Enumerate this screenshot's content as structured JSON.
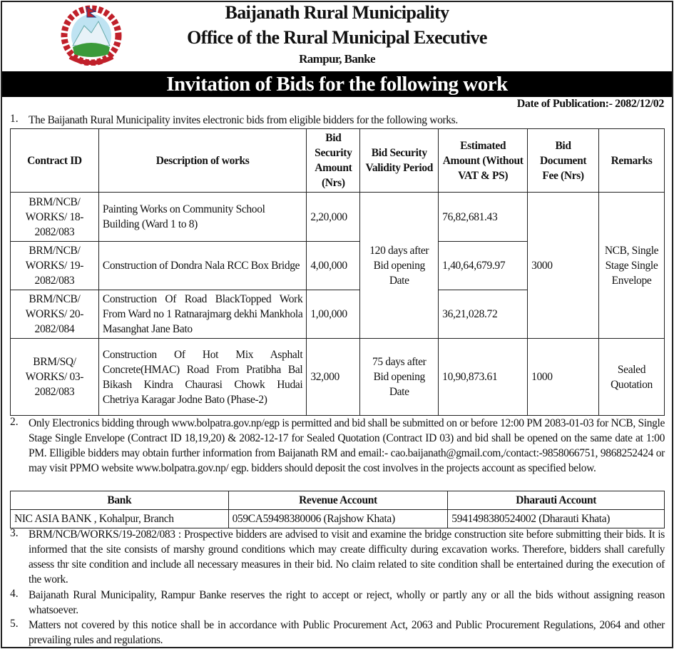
{
  "header": {
    "title": "Baijanath Rural Municipality",
    "subtitle": "Office of the Rural Municipal Executive",
    "address": "Rampur, Banke"
  },
  "banner": "Invitation of Bids for the following work",
  "date_of_publication": "Date of Publication:- 2082/12/02",
  "items": [
    {
      "num": "1.",
      "text": "The Baijanath Rural Municipality invites electronic bids from eligible bidders for the following works."
    },
    {
      "num": "2.",
      "text": "Only Electronics bidding through www.bolpatra.gov.np/egp is permitted and bid shall be submitted on or before 12:00 PM 2083-01-03 for NCB, Single Stage Single Envelope (Contract ID 18,19,20) & 2082-12-17 for  Sealed Quotation (Contract ID 03)  and bid shall be opened on the same date at 1:00 PM. Elligible bidders may obtain further information from Baijanath RM and email:- cao.baijanath@gmail.com,/contact:-9858066751, 9868252424 or may visit PPMO website www.bolpatra.gov.np/ egp. bidders should deposit the cost involves  in the projects account as specified below."
    },
    {
      "num": "3.",
      "text": "BRM/NCB/WORKS/19-2082/083 : Prospective bidders are advised to visit and examine the bridge construction site before submitting their bids. It is informed that the site consists of marshy ground conditions which may create difficulty during excavation works. Therefore, bidders shall carefully assess thr site condition and include all necessary measures in their bid. No claim related to site condition shall be entertained during the execution of the work."
    },
    {
      "num": "4.",
      "text": "Baijanath Rural Municipality, Rampur Banke reserves the right to accept or reject, wholly or partly any or all the bids without assigning reason whatsoever."
    },
    {
      "num": "5.",
      "text": "Matters not covered by this notice shall be in accordance with Public Procurement Act, 2063 and Public Procurement Regulations, 2064 and other prevailing rules and regulations."
    }
  ],
  "bids_table": {
    "headers": [
      "Contract ID",
      "Description of works",
      "Bid Security Amount (Nrs)",
      "Bid Security Validity Period",
      "Estimated Amount (Without VAT & PS)",
      "Bid Document Fee (Nrs)",
      "Remarks"
    ],
    "rows": [
      {
        "id": "BRM/NCB/ WORKS/ 18-2082/083",
        "desc": "Painting Works on Community School Building (Ward 1 to 8)",
        "security": "2,20,000",
        "estimate": "76,82,681.43"
      },
      {
        "id": "BRM/NCB/ WORKS/ 19-2082/083",
        "desc": "Construction of Dondra Nala RCC Box Bridge",
        "security": "4,00,000",
        "estimate": "1,40,64,679.97"
      },
      {
        "id": "BRM/NCB/ WORKS/ 20-2082/084",
        "desc": "Construction Of Road BlackTopped Work From Ward no 1 Ratnarajmarg dekhi Mankhola Masanghat Jane Bato",
        "security": "1,00,000",
        "estimate": "36,21,028.72"
      },
      {
        "id": "BRM/SQ/ WORKS/ 03-2082/083",
        "desc": "Construction Of Hot Mix Asphalt Concrete(HMAC) Road From Pratibha Bal Bikash Kindra Chaurasi Chowk Hudai Chetriya Karagar Jodne Bato (Phase-2)",
        "security": "32,000",
        "validity": "75 days after Bid opening Date",
        "estimate": "10,90,873.61",
        "fee": "1000",
        "remarks": "Sealed Quotation"
      }
    ],
    "ncb_validity": "120 days after Bid opening Date",
    "ncb_fee": "3000",
    "ncb_remarks": "NCB, Single Stage Single Envelope"
  },
  "bank_table": {
    "headers": [
      "Bank",
      "Revenue Account",
      "Dharauti Account"
    ],
    "row": [
      "NIC ASIA BANK , Kohalpur, Branch",
      "059CA59498380006 (Rajshow Khata)",
      "5941498380524002 (Dharauti Khata)"
    ]
  }
}
